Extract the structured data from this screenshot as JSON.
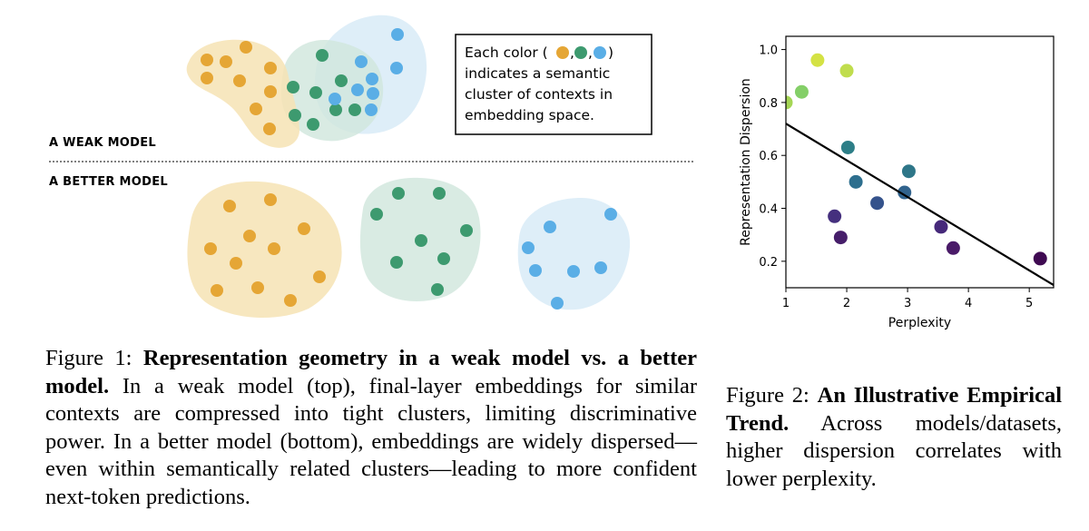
{
  "figure1": {
    "weak_label": "A WEAK MODEL",
    "better_label": "A BETTER MODEL",
    "legend": {
      "lines": [
        "Each color (",
        "indicates a semantic",
        "cluster of contexts in",
        "embedding space."
      ],
      "after_dots": ")",
      "sep": ","
    },
    "colors": {
      "orange": "#e5a635",
      "green": "#3d9a6f",
      "blue": "#5aaee6",
      "orange_blob": "#f6e3b4",
      "green_blob": "#cfe6dc",
      "blue_blob": "#d6eaf6"
    },
    "caption": {
      "label": "Figure 1:",
      "bold": "Representation geometry in a weak model vs. a better model.",
      "text": "In a weak model (top), final-layer embeddings for similar contexts are compressed into tight clusters, limiting discriminative power. In a better model (bottom), embeddings are widely dispersed—even within semantically related clusters—leading to more confident next-token predictions."
    }
  },
  "figure2": {
    "chart_data": {
      "type": "scatter",
      "xlabel": "Perplexity",
      "ylabel": "Representation Dispersion",
      "xlim": [
        1,
        5.4
      ],
      "ylim": [
        0.1,
        1.05
      ],
      "xticks": [
        1,
        2,
        3,
        4,
        5
      ],
      "yticks": [
        0.2,
        0.4,
        0.6,
        0.8,
        1.0
      ],
      "xtick_labels": [
        "1",
        "2",
        "3",
        "4",
        "5"
      ],
      "ytick_labels": [
        "0.2",
        "0.4",
        "0.6",
        "0.8",
        "1.0"
      ],
      "grid": false,
      "points": [
        {
          "x": 1.0,
          "y": 0.8,
          "color": "#a5d655"
        },
        {
          "x": 1.26,
          "y": 0.84,
          "color": "#84cf68"
        },
        {
          "x": 1.52,
          "y": 0.96,
          "color": "#d4e244"
        },
        {
          "x": 2.0,
          "y": 0.92,
          "color": "#c0dd4d"
        },
        {
          "x": 2.02,
          "y": 0.63,
          "color": "#2d7e87"
        },
        {
          "x": 2.15,
          "y": 0.5,
          "color": "#2d6f8e"
        },
        {
          "x": 3.02,
          "y": 0.54,
          "color": "#2e7688"
        },
        {
          "x": 2.95,
          "y": 0.46,
          "color": "#31638d"
        },
        {
          "x": 2.5,
          "y": 0.42,
          "color": "#35538c"
        },
        {
          "x": 1.8,
          "y": 0.37,
          "color": "#45307e"
        },
        {
          "x": 1.9,
          "y": 0.29,
          "color": "#461e6a"
        },
        {
          "x": 3.55,
          "y": 0.33,
          "color": "#46297a"
        },
        {
          "x": 3.75,
          "y": 0.25,
          "color": "#4a1b68"
        },
        {
          "x": 5.18,
          "y": 0.21,
          "color": "#3f0a52"
        }
      ],
      "trend_line": {
        "x": [
          1.0,
          5.4
        ],
        "y": [
          0.72,
          0.11
        ],
        "color": "#000000"
      }
    },
    "caption": {
      "label": "Figure 2:",
      "bold": "An Illustrative Empirical Trend.",
      "text": "Across models/datasets, higher dispersion correlates with lower perplexity."
    }
  }
}
